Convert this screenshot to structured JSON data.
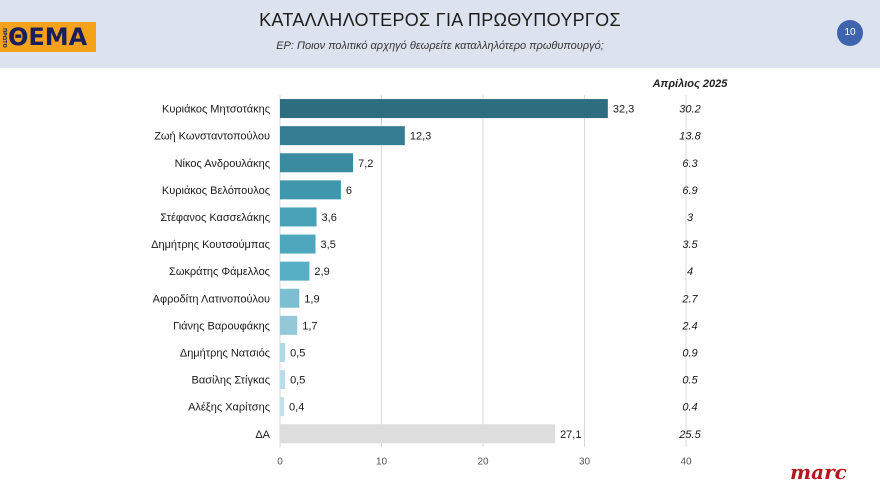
{
  "header": {
    "logo_text": "ΘΕΜΑ",
    "logo_small": "ΠΡΩΤΟ",
    "title": "ΚΑΤΑΛΛΗΛΟΤΕΡΟΣ ΓΙΑ ΠΡΩΘΥΠΟΥΡΓΟΣ",
    "subtitle": "ΕΡ: Ποιον πολιτικό αρχηγό θεωρείτε καταλληλότερο  πρωθυπουργό;",
    "page_number": "10"
  },
  "footer": {
    "brand": "marc"
  },
  "colors": {
    "header_bg": "#dde3ee",
    "logo_bg": "#f5a21b",
    "page_badge": "#3f63ad",
    "brand_red": "#b2191f"
  },
  "chart_data": {
    "type": "bar",
    "orientation": "horizontal",
    "title": "ΚΑΤΑΛΛΗΛΟΤΕΡΟΣ ΓΙΑ ΠΡΩΘΥΠΟΥΡΓΟΣ",
    "subtitle": "ΕΡ: Ποιον πολιτικό αρχηγό θεωρείτε καταλληλότερο  πρωθυπουργό;",
    "categories": [
      "Κυριάκος Μητσοτάκης",
      "Ζωή Κωνσταντοπούλου",
      "Νίκος Ανδρουλάκης",
      "Κυριάκος Βελόπουλος",
      "Στέφανος Κασσελάκης",
      "Δημήτρης Κουτσούμπας",
      "Σωκράτης Φάμελλος",
      "Αφροδίτη Λατινοπούλου",
      "Γιάνης Βαρουφάκης",
      "Δημήτρης Νατσιός",
      "Βασίλης Στίγκας",
      "Αλέξης Χαρίτσης",
      "ΔΑ"
    ],
    "values": [
      32.3,
      12.3,
      7.2,
      6,
      3.6,
      3.5,
      2.9,
      1.9,
      1.7,
      0.5,
      0.5,
      0.4,
      27.1
    ],
    "value_labels": [
      "32,3",
      "12,3",
      "7,2",
      "6",
      "3,6",
      "3,5",
      "2,9",
      "1,9",
      "1,7",
      "0,5",
      "0,5",
      "0,4",
      "27,1"
    ],
    "bar_colors": [
      "#2e6d80",
      "#347d92",
      "#3a8aa0",
      "#4096ac",
      "#48a1b7",
      "#4ea8bd",
      "#58b0c6",
      "#7cbfd3",
      "#94c8d7",
      "#b1d9e5",
      "#b9dde8",
      "#c1e1ea",
      "#dddddd"
    ],
    "comparison": {
      "label": "Απρίλιος 2025",
      "values": [
        "30.2",
        "13.8",
        "6.3",
        "6.9",
        "3",
        "3.5",
        "4",
        "2.7",
        "2.4",
        "0.9",
        "0.5",
        "0.4",
        "25.5"
      ]
    },
    "xlim": [
      0,
      40
    ],
    "xticks": [
      0,
      10,
      20,
      30,
      40
    ],
    "grid": true,
    "legend": "none"
  }
}
